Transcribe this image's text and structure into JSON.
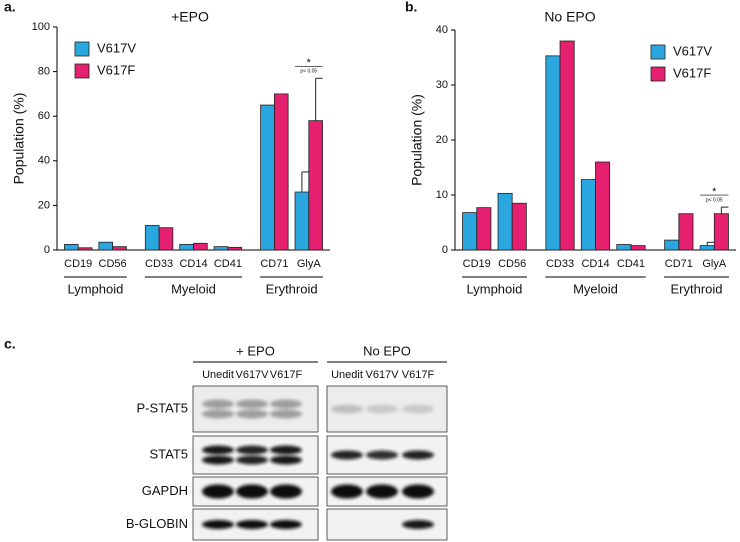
{
  "chart_data": [
    {
      "panel": "a.",
      "type": "bar",
      "title": "+EPO",
      "ylabel": "Population (%)",
      "groups": [
        {
          "name": "Lymphoid",
          "categories": [
            "CD19",
            "CD56"
          ]
        },
        {
          "name": "Myeloid",
          "categories": [
            "CD33",
            "CD14",
            "CD41"
          ]
        },
        {
          "name": "Erythroid",
          "categories": [
            "CD71",
            "GlyA"
          ]
        }
      ],
      "series": [
        {
          "name": "V617V",
          "color": "#2aa7df",
          "values": [
            2.5,
            3.5,
            11,
            2.5,
            1.5,
            65,
            26
          ],
          "errors": [
            null,
            null,
            null,
            null,
            null,
            null,
            9
          ]
        },
        {
          "name": "V617F",
          "color": "#e5206f",
          "values": [
            1,
            1.5,
            10,
            3,
            1.2,
            70,
            58
          ],
          "errors": [
            null,
            null,
            null,
            null,
            null,
            null,
            19
          ]
        }
      ],
      "ylim": [
        0,
        100
      ],
      "yticks": [
        0,
        20,
        40,
        60,
        80,
        100
      ],
      "legend": "upper left",
      "annotation": {
        "text": "*",
        "note": "p< 0.05"
      }
    },
    {
      "panel": "b.",
      "type": "bar",
      "title": "No EPO",
      "ylabel": "Population (%)",
      "groups": [
        {
          "name": "Lymphoid",
          "categories": [
            "CD19",
            "CD56"
          ]
        },
        {
          "name": "Myeloid",
          "categories": [
            "CD33",
            "CD14",
            "CD41"
          ]
        },
        {
          "name": "Erythroid",
          "categories": [
            "CD71",
            "GlyA"
          ]
        }
      ],
      "series": [
        {
          "name": "V617V",
          "color": "#2aa7df",
          "values": [
            6.8,
            10.3,
            35.3,
            12.8,
            1.0,
            1.8,
            0.8
          ],
          "errors": [
            null,
            null,
            null,
            null,
            null,
            null,
            0.6
          ]
        },
        {
          "name": "V617F",
          "color": "#e5206f",
          "values": [
            7.7,
            8.5,
            38,
            16,
            0.8,
            6.6,
            6.6
          ],
          "errors": [
            null,
            null,
            null,
            null,
            null,
            null,
            1.2
          ]
        }
      ],
      "ylim": [
        0,
        40
      ],
      "yticks": [
        0,
        10,
        20,
        30,
        40
      ],
      "legend": "upper right",
      "annotation": {
        "text": "*",
        "note": "p< 0.05"
      }
    }
  ],
  "blot": {
    "panel": "c.",
    "groups": [
      {
        "label": "+ EPO",
        "lanes": [
          "Unedit",
          "V617V",
          "V617F"
        ]
      },
      {
        "label": "No EPO",
        "lanes": [
          "Unedit",
          "V617V",
          "V617F"
        ]
      }
    ],
    "rows": [
      "P-STAT5",
      "STAT5",
      "GAPDH",
      "B-GLOBIN"
    ]
  }
}
